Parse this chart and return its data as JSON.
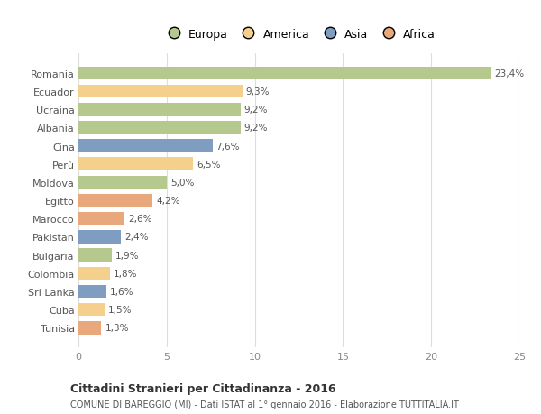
{
  "categories": [
    "Tunisia",
    "Cuba",
    "Sri Lanka",
    "Colombia",
    "Bulgaria",
    "Pakistan",
    "Marocco",
    "Egitto",
    "Moldova",
    "Perù",
    "Cina",
    "Albania",
    "Ucraina",
    "Ecuador",
    "Romania"
  ],
  "values": [
    1.3,
    1.5,
    1.6,
    1.8,
    1.9,
    2.4,
    2.6,
    4.2,
    5.0,
    6.5,
    7.6,
    9.2,
    9.2,
    9.3,
    23.4
  ],
  "continents": [
    "Africa",
    "America",
    "Asia",
    "America",
    "Europa",
    "Asia",
    "Africa",
    "Africa",
    "Europa",
    "America",
    "Asia",
    "Europa",
    "Europa",
    "America",
    "Europa"
  ],
  "colors": {
    "Europa": "#b5c98e",
    "America": "#f5d08c",
    "Asia": "#7f9dc0",
    "Africa": "#e8a87c"
  },
  "legend_labels": [
    "Europa",
    "America",
    "Asia",
    "Africa"
  ],
  "legend_colors": [
    "#b5c98e",
    "#f5d08c",
    "#7f9dc0",
    "#e8a87c"
  ],
  "title": "Cittadini Stranieri per Cittadinanza - 2016",
  "subtitle": "COMUNE DI BAREGGIO (MI) - Dati ISTAT al 1° gennaio 2016 - Elaborazione TUTTITALIA.IT",
  "xlim": [
    0,
    25
  ],
  "xticks": [
    0,
    5,
    10,
    15,
    20,
    25
  ],
  "background_color": "#ffffff",
  "grid_color": "#dddddd",
  "bar_height": 0.72
}
